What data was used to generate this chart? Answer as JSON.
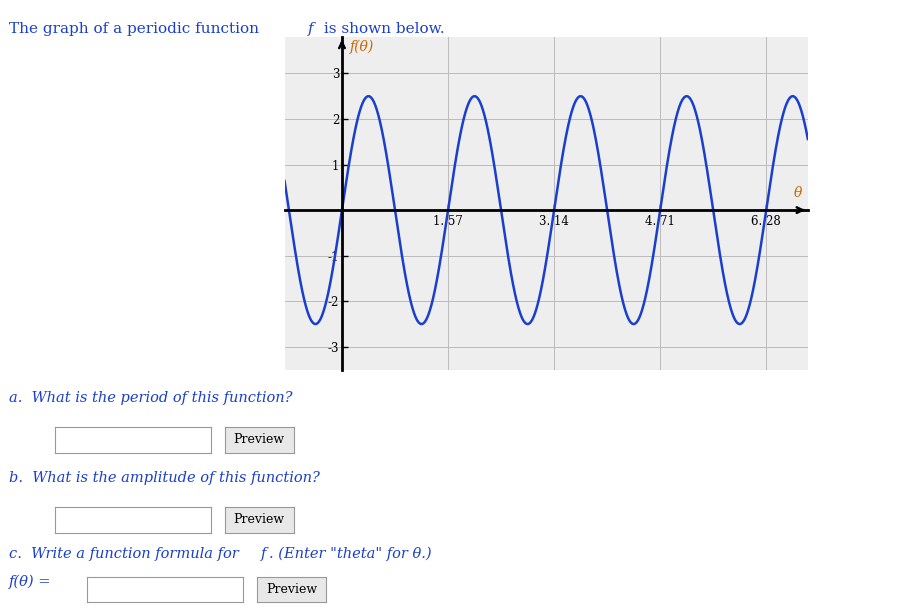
{
  "title_text": "The graph of a periodic function ",
  "title_f": "f",
  "title_rest": " is shown below.",
  "title_color": "#1a3fcc",
  "title_fontsize": 11,
  "ylabel": "f(θ)",
  "ylabel_color": "#cc6600",
  "xlabel": "θ",
  "xlabel_color": "#cc6600",
  "amplitude": 2.5,
  "frequency_multiplier": 4,
  "xlim": [
    -0.85,
    6.9
  ],
  "ylim": [
    -3.5,
    3.8
  ],
  "x_ticks": [
    1.57,
    3.14,
    4.71,
    6.28
  ],
  "x_tick_labels": [
    "1. 57",
    "3. 14",
    "4. 71",
    "6. 28"
  ],
  "y_ticks": [
    -3,
    -2,
    -1,
    1,
    2,
    3
  ],
  "y_tick_labels": [
    "-3",
    "-2",
    "-1",
    "1",
    "2",
    "3"
  ],
  "curve_color": "#1a3fcc",
  "curve_linewidth": 1.8,
  "grid_color": "#bbbbbb",
  "background_color": "#ffffff",
  "plot_bg_color": "#eeeeee",
  "question_a": "a.  What is the period of this function?",
  "question_b": "b.  What is the amplitude of this function?",
  "question_c": "c.  Write a function formula for ",
  "question_c_f": "f",
  "question_c_rest": ". (Enter \"theta\" for θ.)",
  "question_c_prefix": "f(θ) =",
  "question_color": "#1a3fcc",
  "button_text": "Preview",
  "figsize": [
    9.18,
    6.16
  ],
  "dpi": 100,
  "x_start": -0.85,
  "x_end": 6.9
}
